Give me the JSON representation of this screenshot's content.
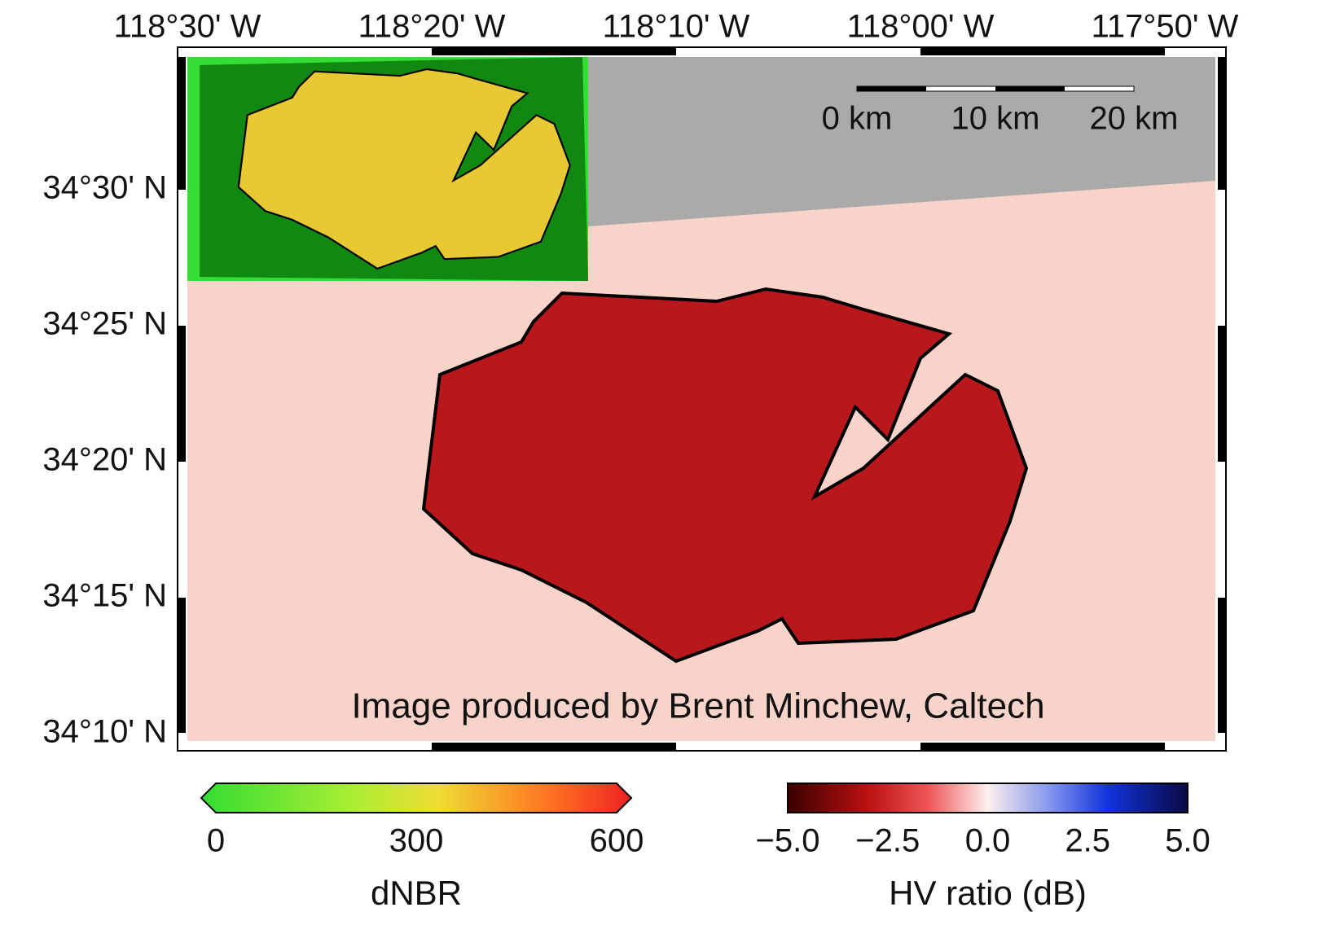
{
  "map": {
    "lon_labels": [
      "118°30' W",
      "118°20' W",
      "118°10' W",
      "118°00' W",
      "117°50' W"
    ],
    "lat_labels": [
      "34°30' N",
      "34°25' N",
      "34°20' N",
      "34°15' N",
      "34°10' N"
    ],
    "scale_bar": [
      "0 km",
      "10 km",
      "20 km"
    ],
    "credit": "Image produced by Brent Minchew, Caltech"
  },
  "colorbars": [
    {
      "label": "dNBR",
      "ticks": [
        "0",
        "300",
        "600"
      ]
    },
    {
      "label": "HV ratio (dB)",
      "ticks": [
        "−5.0",
        "−2.5",
        "0.0",
        "2.5",
        "5.0"
      ]
    }
  ]
}
